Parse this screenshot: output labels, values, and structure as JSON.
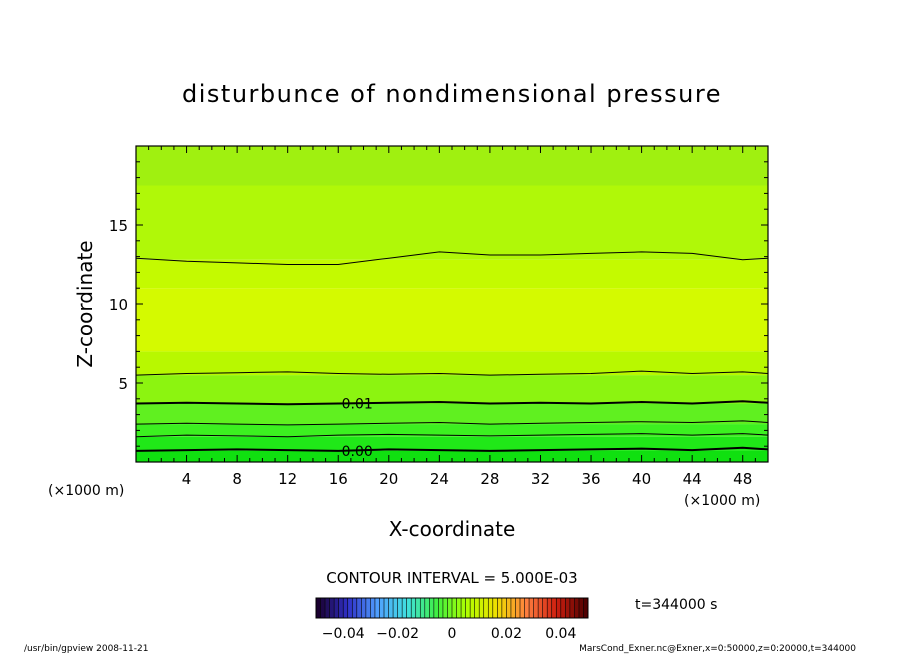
{
  "chart_data": {
    "type": "heatmap",
    "title": "disturbunce of nondimensional pressure",
    "xlabel": "X-coordinate",
    "ylabel": "Z-coordinate",
    "x_unit_left": "(×1000 m)",
    "x_unit_right": "(×1000 m)",
    "xlim": [
      0,
      50
    ],
    "ylim": [
      0,
      20
    ],
    "x_ticks": [
      4,
      8,
      12,
      16,
      20,
      24,
      28,
      32,
      36,
      40,
      44,
      48
    ],
    "y_ticks": [
      5,
      10,
      15
    ],
    "contour_interval": "CONTOUR INTERVAL = 5.000E-03",
    "time_label": "t=344000 s",
    "colorbar_ticks": [
      "−0.04",
      "−0.02",
      "0",
      "0.02",
      "0.04"
    ],
    "colorbar_range": [
      -0.05,
      0.05
    ],
    "colorbar_colors": [
      "#1a0030",
      "#3030c8",
      "#50a0ff",
      "#40e0e0",
      "#40f040",
      "#b0ff00",
      "#f0e000",
      "#ff8040",
      "#d02010",
      "#500000"
    ],
    "contours": [
      {
        "z": [
          0.7,
          0.75,
          0.8,
          0.75,
          0.7,
          0.8,
          0.75,
          0.7,
          0.75,
          0.8,
          0.85,
          0.75,
          0.9,
          0.8
        ],
        "label": "0.00",
        "bold": true
      },
      {
        "z": [
          1.6,
          1.7,
          1.65,
          1.6,
          1.7,
          1.75,
          1.7,
          1.65,
          1.7,
          1.75,
          1.8,
          1.7,
          1.8,
          1.7
        ],
        "label": "",
        "bold": false
      },
      {
        "z": [
          2.4,
          2.45,
          2.4,
          2.35,
          2.4,
          2.45,
          2.5,
          2.4,
          2.45,
          2.5,
          2.55,
          2.5,
          2.6,
          2.5
        ],
        "label": "",
        "bold": false
      },
      {
        "z": [
          3.7,
          3.75,
          3.7,
          3.65,
          3.7,
          3.75,
          3.8,
          3.7,
          3.75,
          3.7,
          3.8,
          3.7,
          3.85,
          3.75
        ],
        "label": "0.01",
        "bold": true
      },
      {
        "z": [
          5.5,
          5.6,
          5.65,
          5.7,
          5.6,
          5.55,
          5.6,
          5.5,
          5.55,
          5.6,
          5.75,
          5.6,
          5.7,
          5.6
        ],
        "label": "",
        "bold": false
      },
      {
        "z": [
          12.9,
          12.7,
          12.6,
          12.5,
          12.5,
          12.9,
          13.3,
          13.1,
          13.1,
          13.2,
          13.3,
          13.2,
          12.8,
          12.9
        ],
        "label": "",
        "bold": false
      }
    ],
    "contour_x": [
      0,
      4,
      8,
      12,
      16,
      20,
      24,
      28,
      32,
      36,
      40,
      44,
      48,
      50
    ],
    "field_bands": [
      {
        "z0": 0,
        "z1": 0.7,
        "color": "#10e010"
      },
      {
        "z0": 0.7,
        "z1": 1.6,
        "color": "#20e818"
      },
      {
        "z0": 1.6,
        "z1": 2.4,
        "color": "#3cf020"
      },
      {
        "z0": 2.4,
        "z1": 3.7,
        "color": "#60f020"
      },
      {
        "z0": 3.7,
        "z1": 5.5,
        "color": "#8cf410"
      },
      {
        "z0": 5.5,
        "z1": 7.0,
        "color": "#b8f800"
      },
      {
        "z0": 7.0,
        "z1": 11.0,
        "color": "#d4fa00"
      },
      {
        "z0": 11.0,
        "z1": 12.8,
        "color": "#c4fa00"
      },
      {
        "z0": 12.8,
        "z1": 17.5,
        "color": "#b0f808"
      },
      {
        "z0": 17.5,
        "z1": 20.0,
        "color": "#a0f010"
      }
    ]
  },
  "footer": {
    "left": "/usr/bin/gpview   2008-11-21",
    "right": "MarsCond_Exner.nc@Exner,x=0:50000,z=0:20000,t=344000"
  }
}
